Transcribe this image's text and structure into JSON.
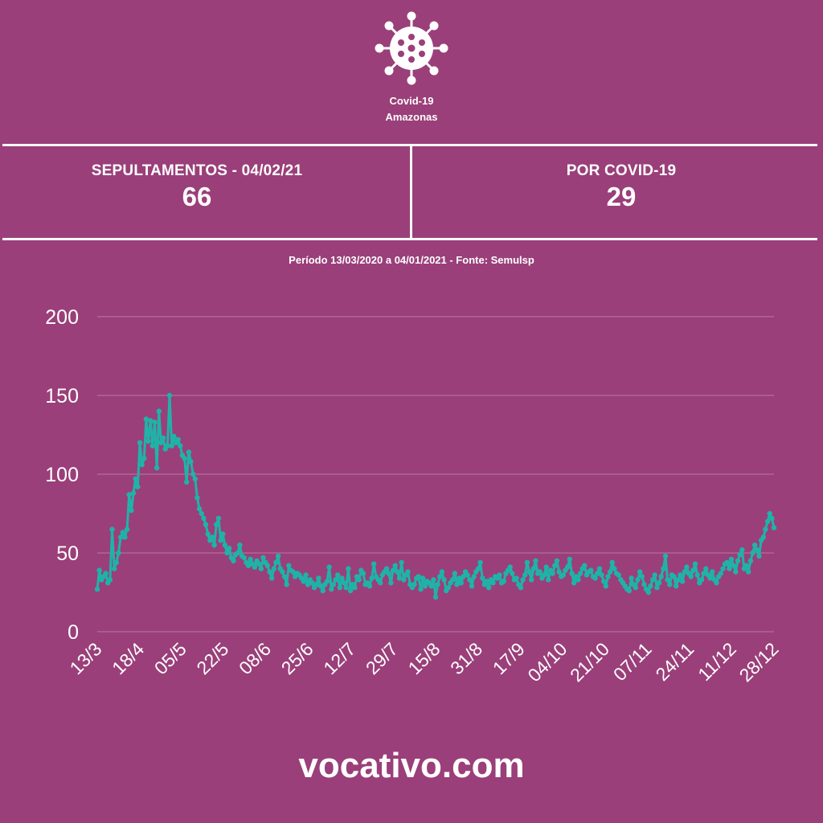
{
  "header": {
    "title_line1": "Covid-19",
    "title_line2": "Amazonas"
  },
  "stats": [
    {
      "label": "SEPULTAMENTOS - 04/02/21",
      "value": "66"
    },
    {
      "label": "POR COVID-19",
      "value": "29"
    }
  ],
  "subtitle": "Período 13/03/2020 a 04/01/2021 - Fonte: Semulsp",
  "footer": "vocativo.com",
  "colors": {
    "background": "#9a3f7a",
    "line": "#1fb3a8",
    "text": "#ffffff",
    "grid": "#b97aa3"
  },
  "icon": "virus-icon",
  "chart_data": {
    "type": "line",
    "ylim": [
      0,
      200
    ],
    "yticks": [
      0,
      50,
      100,
      150,
      200
    ],
    "xticks": [
      "13/3",
      "18/4",
      "05/5",
      "22/5",
      "08/6",
      "25/6",
      "12/7",
      "29/7",
      "15/8",
      "31/8",
      "17/9",
      "04/10",
      "21/10",
      "07/11",
      "24/11",
      "11/12",
      "28/12"
    ],
    "grid": true,
    "legend": "none",
    "series": [
      {
        "values": [
          27,
          39,
          33,
          35,
          37,
          31,
          33,
          65,
          40,
          44,
          50,
          60,
          63,
          60,
          65,
          87,
          77,
          88,
          97,
          92,
          120,
          106,
          110,
          135,
          121,
          134,
          118,
          133,
          104,
          140,
          120,
          123,
          116,
          118,
          150,
          118,
          124,
          120,
          122,
          118,
          112,
          110,
          95,
          114,
          108,
          100,
          97,
          85,
          78,
          75,
          72,
          68,
          62,
          58,
          60,
          55,
          68,
          72,
          58,
          62,
          55,
          50,
          53,
          47,
          45,
          49,
          50,
          55,
          48,
          47,
          44,
          42,
          46,
          43,
          41,
          45,
          43,
          40,
          47,
          44,
          42,
          38,
          34,
          40,
          44,
          48,
          40,
          38,
          35,
          30,
          42,
          39,
          38,
          35,
          37,
          36,
          34,
          32,
          36,
          30,
          33,
          31,
          28,
          30,
          34,
          29,
          26,
          30,
          32,
          41,
          27,
          30,
          33,
          36,
          28,
          34,
          31,
          28,
          40,
          26,
          30,
          28,
          35,
          33,
          39,
          37,
          30,
          31,
          29,
          34,
          43,
          35,
          33,
          31,
          36,
          38,
          40,
          37,
          31,
          39,
          42,
          38,
          34,
          44,
          33,
          36,
          38,
          30,
          28,
          30,
          34,
          35,
          27,
          34,
          29,
          32,
          31,
          29,
          33,
          22,
          30,
          35,
          38,
          33,
          26,
          28,
          31,
          33,
          37,
          30,
          34,
          31,
          35,
          38,
          36,
          33,
          29,
          35,
          38,
          40,
          44,
          34,
          30,
          32,
          28,
          33,
          31,
          35,
          34,
          36,
          31,
          32,
          37,
          39,
          41,
          37,
          33,
          34,
          30,
          28,
          33,
          36,
          44,
          38,
          33,
          40,
          45,
          37,
          38,
          34,
          36,
          41,
          33,
          39,
          37,
          42,
          45,
          38,
          35,
          36,
          39,
          41,
          46,
          37,
          31,
          35,
          33,
          37,
          40,
          42,
          36,
          38,
          39,
          35,
          34,
          37,
          40,
          36,
          32,
          29,
          35,
          38,
          44,
          40,
          37,
          36,
          33,
          31,
          29,
          27,
          26,
          34,
          30,
          28,
          33,
          38,
          35,
          30,
          27,
          25,
          29,
          33,
          36,
          28,
          31,
          35,
          40,
          48,
          33,
          30,
          36,
          35,
          29,
          33,
          36,
          32,
          38,
          41,
          37,
          35,
          39,
          43,
          36,
          31,
          33,
          37,
          40,
          36,
          34,
          38,
          33,
          31,
          35,
          37,
          40,
          43,
          44,
          40,
          46,
          42,
          38,
          45,
          49,
          52,
          40,
          42,
          38,
          45,
          50,
          55,
          52,
          48,
          58,
          60,
          65,
          70,
          75,
          72,
          66
        ]
      }
    ]
  }
}
